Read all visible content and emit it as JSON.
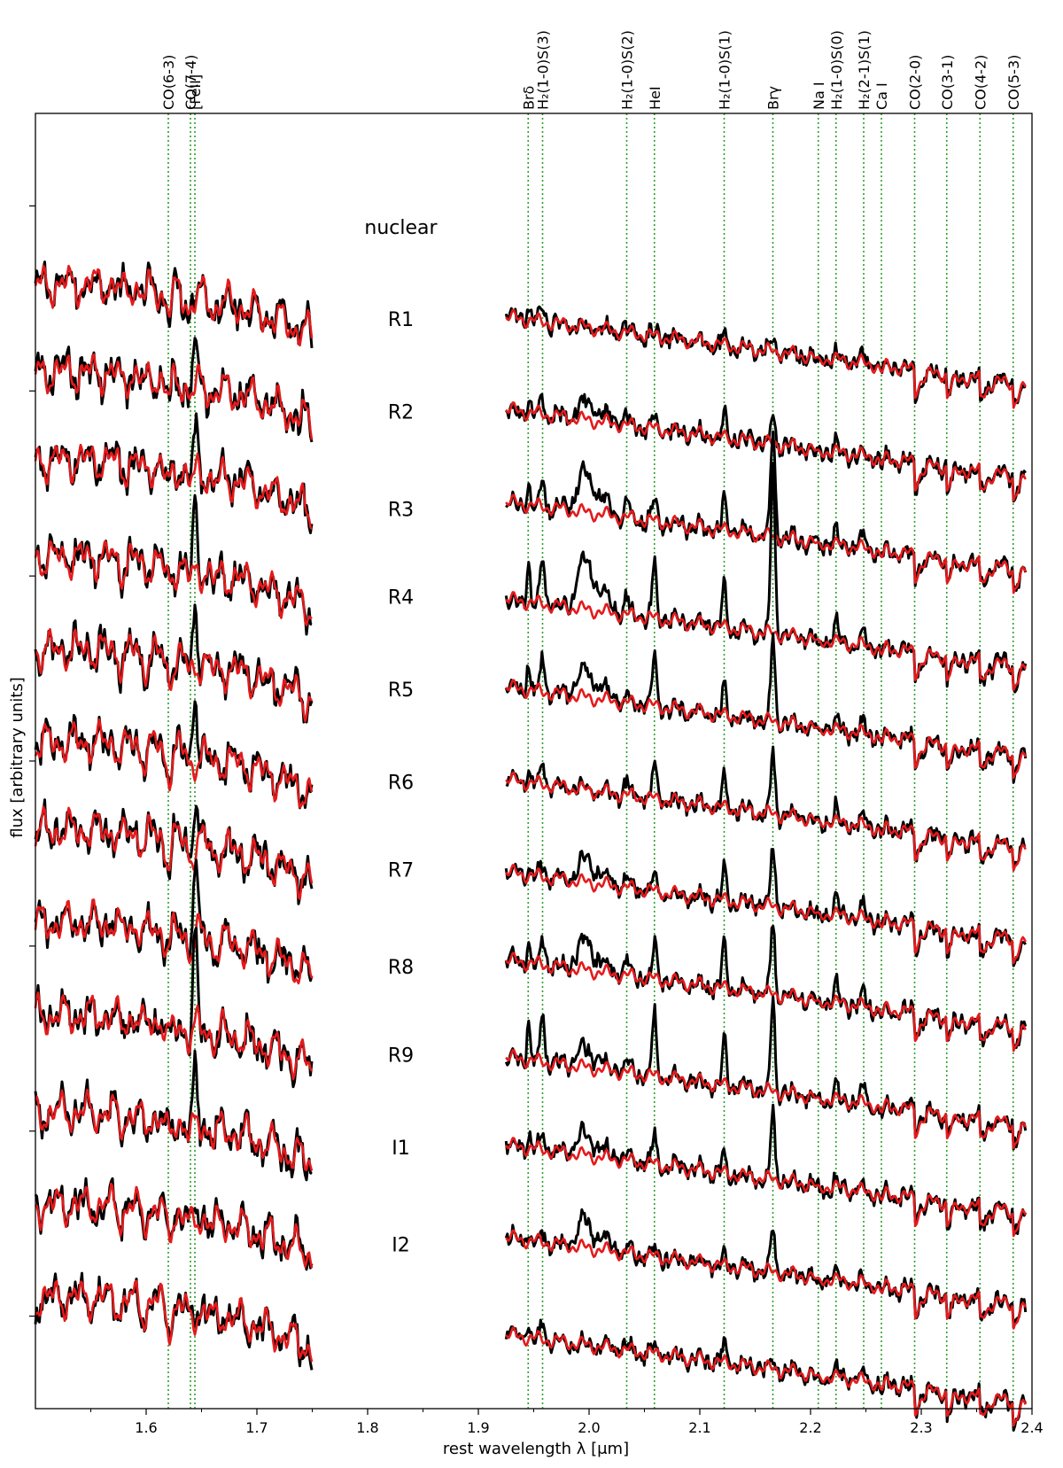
{
  "chart_data": {
    "type": "line",
    "xlabel": "rest wavelength λ [μm]",
    "ylabel": "flux [arbitrary units]",
    "xlim": [
      1.5,
      2.4
    ],
    "ylim": [
      0,
      14
    ],
    "grid": false,
    "x_ticks": [
      "1.6",
      "1.7",
      "1.8",
      "1.9",
      "2.0",
      "2.1",
      "2.2",
      "2.3",
      "2.4"
    ],
    "x_tick_values": [
      1.6,
      1.7,
      1.8,
      1.9,
      2.0,
      2.1,
      2.2,
      2.3,
      2.4
    ],
    "colors": {
      "observed": "#000000",
      "model": "#e41a1c",
      "line_marker": "#2ca02c"
    },
    "h_band_range": [
      1.5,
      1.75
    ],
    "k_band_range": [
      1.925,
      2.395
    ],
    "line_markers": [
      {
        "label": "CO(6-3)",
        "x": 1.62
      },
      {
        "label": "CO(7-4)",
        "x": 1.64
      },
      {
        "label": "[FeII]",
        "x": 1.644
      },
      {
        "label": "Brδ",
        "x": 1.945
      },
      {
        "label": "H₂(1-0)S(3)",
        "x": 1.958
      },
      {
        "label": "H₂(1-0)S(2)",
        "x": 2.034
      },
      {
        "label": "HeI",
        "x": 2.059
      },
      {
        "label": "H₂(1-0)S(1)",
        "x": 2.122
      },
      {
        "label": "Brγ",
        "x": 2.166
      },
      {
        "label": "Na I",
        "x": 2.207
      },
      {
        "label": "H₂(1-0)S(0)",
        "x": 2.223
      },
      {
        "label": "H₂(2-1)S(1)",
        "x": 2.248
      },
      {
        "label": "Ca I",
        "x": 2.264
      },
      {
        "label": "CO(2-0)",
        "x": 2.294
      },
      {
        "label": "CO(3-1)",
        "x": 2.323
      },
      {
        "label": "CO(4-2)",
        "x": 2.353
      },
      {
        "label": "CO(5-3)",
        "x": 2.383
      }
    ],
    "series": [
      {
        "name": "nuclear",
        "h_offset": 12.0,
        "k_offset": 11.05,
        "emission": {
          "feii": 0.1,
          "brg": 0.05,
          "h2": 0.08,
          "hei": 0.03,
          "h2s3": 0.15,
          "bump": 0
        }
      },
      {
        "name": "R1",
        "h_offset": 11.05,
        "k_offset": 10.05,
        "emission": {
          "feii": 0.45,
          "brg": 0.15,
          "h2": 0.2,
          "hei": 0.12,
          "h2s3": 0.15,
          "bump": 0.2
        }
      },
      {
        "name": "R2",
        "h_offset": 10.1,
        "k_offset": 9.05,
        "emission": {
          "feii": 0.35,
          "brg": 0.7,
          "h2": 0.3,
          "hei": 0.2,
          "h2s3": 0.25,
          "bump": 0.45
        }
      },
      {
        "name": "R3",
        "h_offset": 9.05,
        "k_offset": 8.0,
        "emission": {
          "feii": 0.5,
          "brg": 1.1,
          "h2": 0.4,
          "hei": 0.45,
          "h2s3": 0.45,
          "bump": 0.55
        }
      },
      {
        "name": "R4",
        "h_offset": 8.05,
        "k_offset": 7.05,
        "emission": {
          "feii": 0.5,
          "brg": 0.55,
          "h2": 0.25,
          "hei": 0.4,
          "h2s3": 0.35,
          "bump": 0.3
        }
      },
      {
        "name": "R5",
        "h_offset": 7.05,
        "k_offset": 6.05,
        "emission": {
          "feii": 0.6,
          "brg": 0.4,
          "h2": 0.3,
          "hei": 0.25,
          "h2s3": 0.2,
          "bump": 0
        }
      },
      {
        "name": "R6",
        "h_offset": 6.1,
        "k_offset": 5.05,
        "emission": {
          "feii": 0.4,
          "brg": 0.4,
          "h2": 0.3,
          "hei": 0.1,
          "h2s3": 0.1,
          "bump": 0.25
        }
      },
      {
        "name": "R7",
        "h_offset": 5.1,
        "k_offset": 4.1,
        "emission": {
          "feii": 0.6,
          "brg": 0.45,
          "h2": 0.4,
          "hei": 0.3,
          "h2s3": 0.25,
          "bump": 0.3
        }
      },
      {
        "name": "R8",
        "h_offset": 4.1,
        "k_offset": 3.05,
        "emission": {
          "feii": 0.75,
          "brg": 0.6,
          "h2": 0.4,
          "hei": 0.55,
          "h2s3": 0.45,
          "bump": 0.2
        }
      },
      {
        "name": "R9",
        "h_offset": 3.05,
        "k_offset": 2.1,
        "emission": {
          "feii": 0.45,
          "brg": 0.45,
          "h2": 0.15,
          "hei": 0.25,
          "h2s3": 0.2,
          "bump": 0.25
        }
      },
      {
        "name": "I1",
        "h_offset": 2.05,
        "k_offset": 1.1,
        "emission": {
          "feii": 0.1,
          "brg": 0.3,
          "h2": 0.1,
          "hei": 0.05,
          "h2s3": 0.1,
          "bump": 0.3
        }
      },
      {
        "name": "I2",
        "h_offset": 1.05,
        "k_offset": 0.05,
        "emission": {
          "feii": 0.05,
          "brg": 0.05,
          "h2": 0.15,
          "hei": 0.05,
          "h2s3": 0.15,
          "bump": 0
        }
      }
    ]
  }
}
